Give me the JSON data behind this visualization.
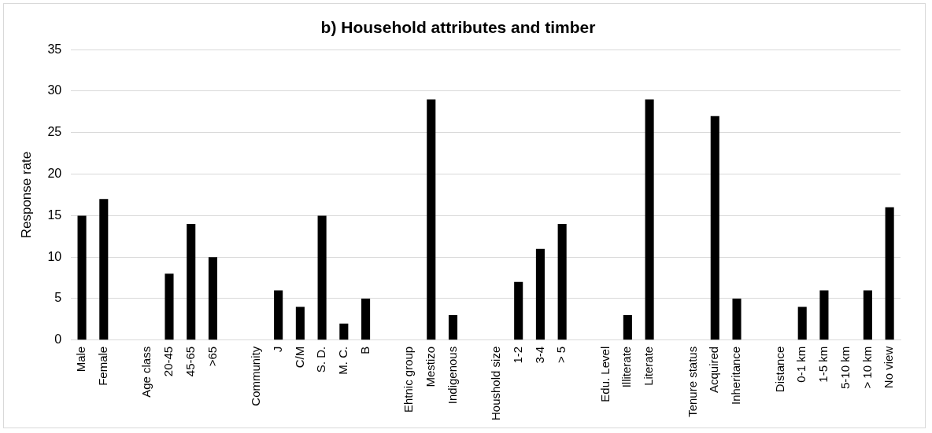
{
  "chart_data": {
    "type": "bar",
    "title": "b) Household attributes and timber",
    "ylabel": "Response rate",
    "categories": [
      "Male",
      "Female",
      null,
      "Age class",
      "20-45",
      "45-65",
      ">65",
      null,
      "Community",
      "J",
      "C/M",
      "S. D.",
      "M. C.",
      "B",
      null,
      "Ehtnic group",
      "Mestizo",
      "Indigenous",
      null,
      "Houshold size",
      "1-2",
      "3-4",
      "> 5",
      null,
      "Edu. Level",
      "Illiterate",
      "Literate",
      null,
      "Tenure status",
      "Acquired",
      "Inheritance",
      null,
      "Distance",
      "0-1 km",
      "1-5 km",
      "5-10 km",
      "> 10 km",
      "No view"
    ],
    "values": [
      15,
      17,
      null,
      null,
      8,
      14,
      10,
      null,
      null,
      6,
      4,
      15,
      2,
      5,
      null,
      null,
      29,
      3,
      null,
      null,
      7,
      11,
      14,
      null,
      null,
      3,
      29,
      null,
      null,
      27,
      5,
      null,
      null,
      4,
      6,
      0,
      6,
      16
    ],
    "color": "#000000",
    "ylim": [
      0,
      35
    ],
    "yticks": [
      0,
      5,
      10,
      15,
      20,
      25,
      30,
      35
    ],
    "grid": "y",
    "legend": false
  }
}
